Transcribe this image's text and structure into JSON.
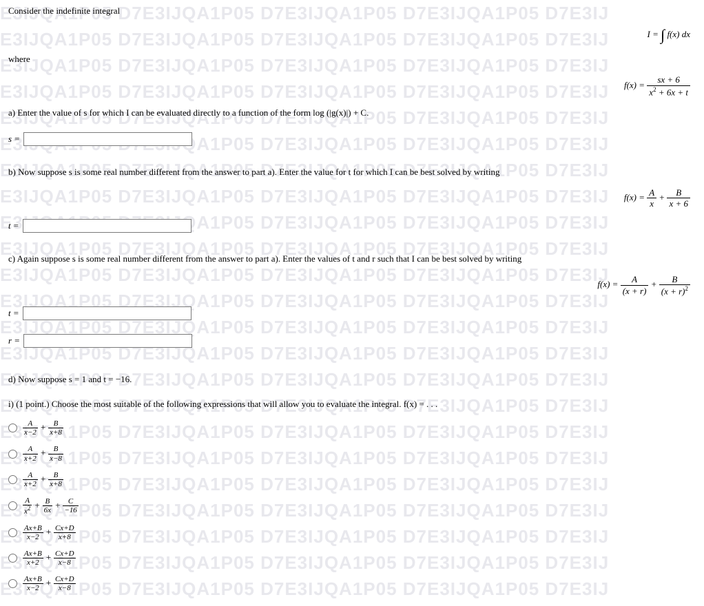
{
  "watermark_text": "E3IJQA1P05  D7E3IJQA1P05  D7E3IJQA1P05  D7E3IJQA1P05  D7E3IJ",
  "watermark_color": "rgba(230,230,235,0.9)",
  "watermark_fontsize": 26,
  "intro": "Consider the indefinite integral",
  "eq_I_lhs": "I = ",
  "eq_I_int_dx": " f(x) dx",
  "where": "where",
  "fx_label": "f(x) = ",
  "frac_main": {
    "num": "sx + 6",
    "den_a": "x",
    "den_rest": " + 6x + t"
  },
  "part_a": "a) Enter the value of s for which I can be evaluated directly to a function of the form log (|g(x)|) + C.",
  "s_eq": "s =",
  "part_b": "b) Now suppose s is some real number different from the answer to part a). Enter the value for t for which I can be best solved by writing",
  "pf1": {
    "A": "A",
    "x": "x",
    "B": "B",
    "xr": "x + 6",
    "plus": " + "
  },
  "t_eq": "t =",
  "part_c": "c) Again suppose s is some real number different from the answer to part a). Enter the values of t and r such that I can be best solved by writing",
  "pf2": {
    "A": "A",
    "xr": "(x + r)",
    "B": "B",
    "xr2_a": "(x + r)",
    "sq": "2",
    "plus": " + "
  },
  "r_eq": "r =",
  "part_d": "d) Now suppose s = 1 and t = −16.",
  "part_i": "i) (1 point.) Choose the most suitable of the following expressions that will allow you to evaluate the integral. f(x) = . . .",
  "options": {
    "o1": {
      "t1n": "A",
      "t1d": "x−2",
      "plus": " + ",
      "t2n": "B",
      "t2d": "x+8"
    },
    "o2": {
      "t1n": "A",
      "t1d": "x+2",
      "plus": " + ",
      "t2n": "B",
      "t2d": "x−8"
    },
    "o3": {
      "t1n": "A",
      "t1d": "x+2",
      "plus": " + ",
      "t2n": "B",
      "t2d": "x+8"
    },
    "o4": {
      "t1n": "A",
      "t1d_a": "x",
      "plus1": " + ",
      "t2n": "B",
      "t2d": "6x",
      "plus2": " + ",
      "t3n": "C",
      "t3d": "−16"
    },
    "o5": {
      "t1n": "Ax+B",
      "t1d": "x−2",
      "plus": " + ",
      "t2n": "Cx+D",
      "t2d": "x+8"
    },
    "o6": {
      "t1n": "Ax+B",
      "t1d": "x+2",
      "plus": " + ",
      "t2n": "Cx+D",
      "t2d": "x−8"
    },
    "o7": {
      "t1n": "Ax+B",
      "t1d": "x−2",
      "plus": " + ",
      "t2n": "Cx+D",
      "t2d": "x−8"
    }
  }
}
